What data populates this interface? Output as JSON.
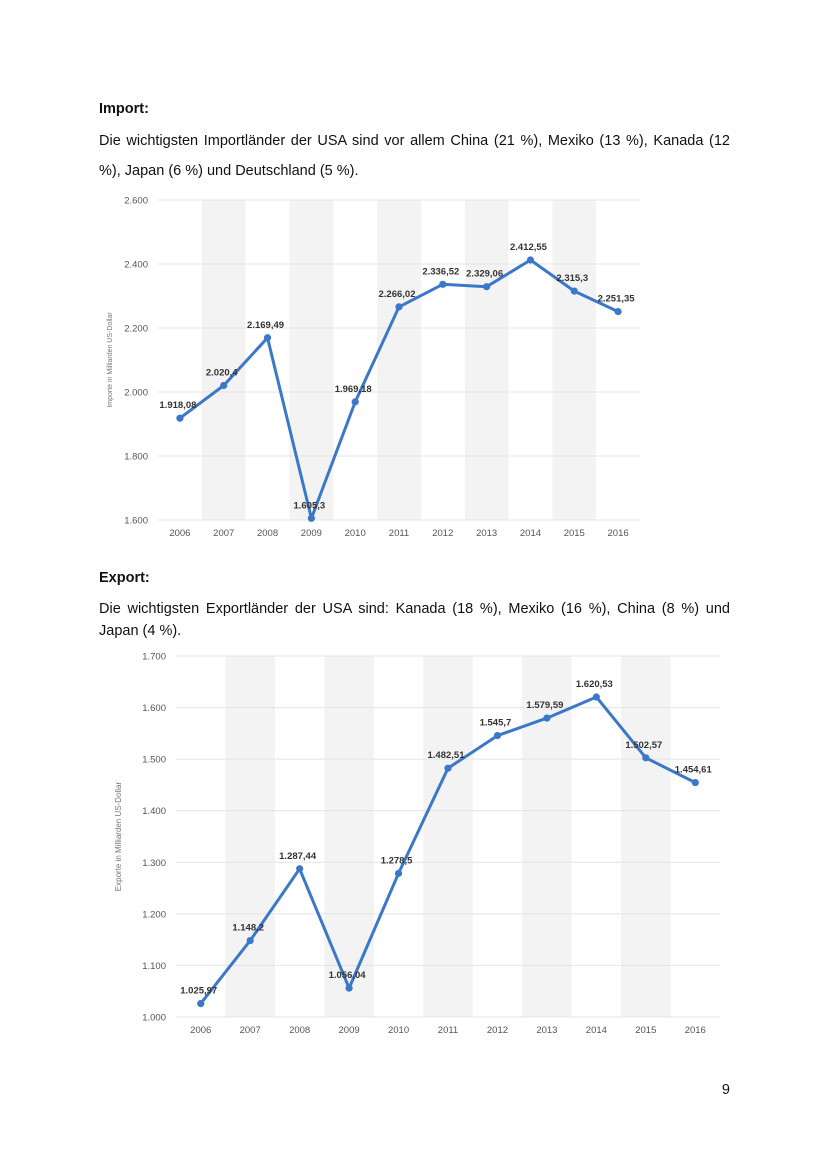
{
  "import_section": {
    "heading": "Import:",
    "text": "Die wichtigsten Importländer der USA sind vor allem China (21 %), Mexiko (13 %), Kanada (12 %), Japan (6 %) und Deutschland (5 %)."
  },
  "export_section": {
    "heading": "Export:",
    "text": "Die wichtigsten Exportländer der USA sind: Kanada (18 %), Mexiko (16 %), China (8 %) und Japan (4 %)."
  },
  "page_number": "9",
  "chart_data": [
    {
      "type": "line",
      "title": "",
      "xlabel": "",
      "ylabel": "Importe in Milliarden US-Dollar",
      "categories": [
        "2006",
        "2007",
        "2008",
        "2009",
        "2010",
        "2011",
        "2012",
        "2013",
        "2014",
        "2015",
        "2016"
      ],
      "values": [
        1918.08,
        2020.4,
        2169.49,
        1605.3,
        1969.18,
        2266.02,
        2336.52,
        2329.06,
        2412.55,
        2315.3,
        2251.35
      ],
      "data_labels": [
        "1.918,08",
        "2.020,4",
        "2.169,49",
        "1.605,3",
        "1.969,18",
        "2.266,02",
        "2.336,52",
        "2.329,06",
        "2.412,55",
        "2.315,3",
        "2.251,35"
      ],
      "ylim": [
        1600,
        2600
      ],
      "yticks": [
        1600,
        1800,
        2000,
        2200,
        2400,
        2600
      ],
      "ytick_labels": [
        "1.600",
        "1.800",
        "2.000",
        "2.200",
        "2.400",
        "2.600"
      ],
      "grid": true,
      "line_color": "#3b78c9",
      "band_color": "#f3f3f3",
      "axis_text_color": "#555555"
    },
    {
      "type": "line",
      "title": "",
      "xlabel": "",
      "ylabel": "Exporte in Milliarden US-Dollar",
      "categories": [
        "2006",
        "2007",
        "2008",
        "2009",
        "2010",
        "2011",
        "2012",
        "2013",
        "2014",
        "2015",
        "2016"
      ],
      "values": [
        1025.97,
        1148.2,
        1287.44,
        1056.04,
        1278.5,
        1482.51,
        1545.7,
        1579.59,
        1620.53,
        1502.57,
        1454.61
      ],
      "data_labels": [
        "1.025,97",
        "1.148,2",
        "1.287,44",
        "1.056,04",
        "1.278,5",
        "1.482,51",
        "1.545,7",
        "1.579,59",
        "1.620,53",
        "1.502,57",
        "1.454,61"
      ],
      "ylim": [
        1000,
        1700
      ],
      "yticks": [
        1000,
        1100,
        1200,
        1300,
        1400,
        1500,
        1600,
        1700
      ],
      "ytick_labels": [
        "1.000",
        "1.100",
        "1.200",
        "1.300",
        "1.400",
        "1.500",
        "1.600",
        "1.700"
      ],
      "grid": true,
      "line_color": "#3b78c9",
      "band_color": "#f3f3f3",
      "axis_text_color": "#555555"
    }
  ]
}
